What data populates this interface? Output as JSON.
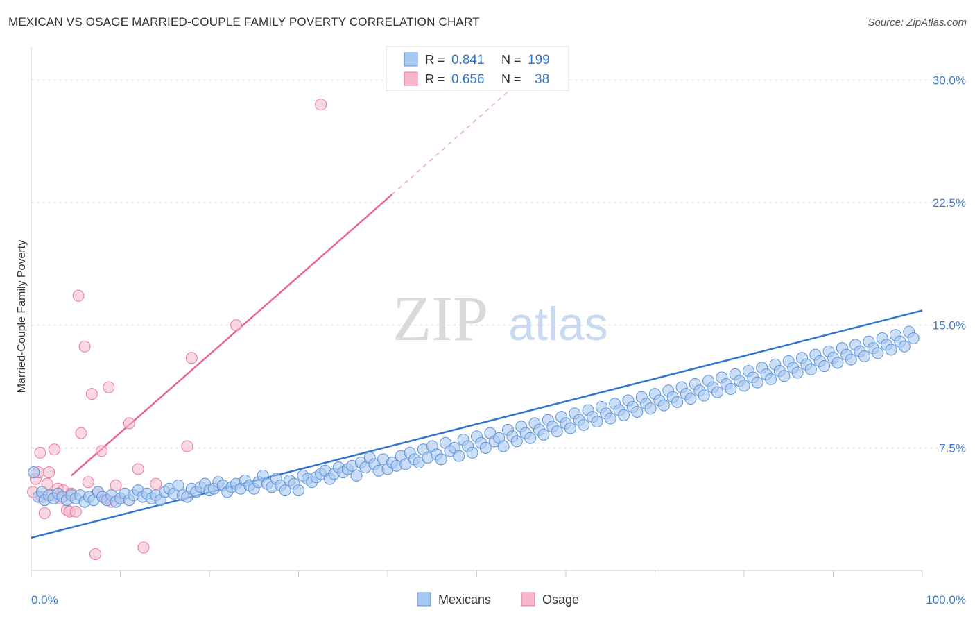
{
  "header": {
    "title": "MEXICAN VS OSAGE MARRIED-COUPLE FAMILY POVERTY CORRELATION CHART",
    "source": "Source: ZipAtlas.com"
  },
  "watermark": {
    "zip": "ZIP",
    "atlas": "atlas"
  },
  "legend_top": {
    "rows": [
      {
        "r_label": "R =",
        "r_value": "0.841",
        "n_label": "N =",
        "n_value": "199",
        "series": "Mexicans"
      },
      {
        "r_label": "R =",
        "r_value": "0.656",
        "n_label": "N =",
        "n_value": "38",
        "series": "Osage"
      }
    ]
  },
  "legend_bottom": {
    "items": [
      "Mexicans",
      "Osage"
    ]
  },
  "colors": {
    "blue_fill": "#a8c8f0",
    "blue_stroke": "#5b92d8",
    "blue_line": "#2f74d0",
    "pink_fill": "#f6b8ca",
    "pink_stroke": "#e8799c",
    "pink_line": "#e8648e",
    "grid": "#d8d8d8",
    "tick_label": "#3a78c8",
    "value_text": "#2f74d0"
  },
  "chart_data": {
    "type": "scatter",
    "title": "MEXICAN VS OSAGE MARRIED-COUPLE FAMILY POVERTY CORRELATION CHART",
    "xlabel": "",
    "ylabel": "Married-Couple Family Poverty",
    "xlim": [
      0,
      100
    ],
    "ylim": [
      0,
      31.5
    ],
    "x_tick_labels": [
      "0.0%",
      "100.0%"
    ],
    "y_ticks": [
      7.5,
      15.0,
      22.5,
      30.0
    ],
    "y_tick_labels": [
      "7.5%",
      "15.0%",
      "22.5%",
      "30.0%"
    ],
    "grid": true,
    "legend_position": "top-center",
    "series": [
      {
        "name": "Mexicans",
        "r": 0.841,
        "n": 199,
        "trend": {
          "x": [
            0,
            100
          ],
          "y": [
            2.0,
            15.9
          ]
        },
        "points": [
          [
            0.3,
            6.0
          ],
          [
            0.8,
            4.5
          ],
          [
            1.2,
            4.8
          ],
          [
            1.5,
            4.3
          ],
          [
            2.0,
            4.6
          ],
          [
            2.5,
            4.4
          ],
          [
            3.0,
            4.7
          ],
          [
            3.5,
            4.5
          ],
          [
            4.0,
            4.3
          ],
          [
            4.5,
            4.6
          ],
          [
            5.0,
            4.4
          ],
          [
            5.5,
            4.6
          ],
          [
            6.0,
            4.2
          ],
          [
            6.5,
            4.5
          ],
          [
            7.0,
            4.3
          ],
          [
            7.5,
            4.8
          ],
          [
            8.0,
            4.5
          ],
          [
            8.5,
            4.3
          ],
          [
            9.0,
            4.6
          ],
          [
            9.5,
            4.2
          ],
          [
            10.0,
            4.4
          ],
          [
            10.5,
            4.7
          ],
          [
            11.0,
            4.3
          ],
          [
            11.5,
            4.6
          ],
          [
            12.0,
            4.9
          ],
          [
            12.5,
            4.5
          ],
          [
            13.0,
            4.7
          ],
          [
            13.5,
            4.4
          ],
          [
            14.0,
            4.6
          ],
          [
            14.5,
            4.3
          ],
          [
            15.0,
            4.8
          ],
          [
            15.5,
            5.0
          ],
          [
            16.0,
            4.7
          ],
          [
            16.5,
            5.2
          ],
          [
            17.0,
            4.6
          ],
          [
            17.5,
            4.5
          ],
          [
            18.0,
            5.0
          ],
          [
            18.5,
            4.8
          ],
          [
            19.0,
            5.1
          ],
          [
            19.5,
            5.3
          ],
          [
            20.0,
            4.9
          ],
          [
            20.5,
            5.0
          ],
          [
            21.0,
            5.4
          ],
          [
            21.5,
            5.2
          ],
          [
            22.0,
            4.8
          ],
          [
            22.5,
            5.1
          ],
          [
            23.0,
            5.3
          ],
          [
            23.5,
            5.0
          ],
          [
            24.0,
            5.5
          ],
          [
            24.5,
            5.2
          ],
          [
            25.0,
            5.0
          ],
          [
            25.5,
            5.4
          ],
          [
            26.0,
            5.8
          ],
          [
            26.5,
            5.3
          ],
          [
            27.0,
            5.1
          ],
          [
            27.5,
            5.6
          ],
          [
            28.0,
            5.2
          ],
          [
            28.5,
            4.9
          ],
          [
            29.0,
            5.5
          ],
          [
            29.5,
            5.3
          ],
          [
            30.0,
            4.9
          ],
          [
            30.5,
            5.8
          ],
          [
            31.0,
            5.6
          ],
          [
            31.5,
            5.4
          ],
          [
            32.0,
            5.7
          ],
          [
            32.5,
            5.9
          ],
          [
            33.0,
            6.1
          ],
          [
            33.5,
            5.6
          ],
          [
            34.0,
            5.9
          ],
          [
            34.5,
            6.3
          ],
          [
            35.0,
            6.0
          ],
          [
            35.5,
            6.2
          ],
          [
            36.0,
            6.4
          ],
          [
            36.5,
            5.8
          ],
          [
            37.0,
            6.6
          ],
          [
            37.5,
            6.3
          ],
          [
            38.0,
            6.9
          ],
          [
            38.5,
            6.5
          ],
          [
            39.0,
            6.1
          ],
          [
            39.5,
            6.8
          ],
          [
            40.0,
            6.2
          ],
          [
            40.5,
            6.6
          ],
          [
            41.0,
            6.4
          ],
          [
            41.5,
            7.0
          ],
          [
            42.0,
            6.5
          ],
          [
            42.5,
            7.2
          ],
          [
            43.0,
            6.8
          ],
          [
            43.5,
            6.6
          ],
          [
            44.0,
            7.4
          ],
          [
            44.5,
            6.9
          ],
          [
            45.0,
            7.6
          ],
          [
            45.5,
            7.1
          ],
          [
            46.0,
            6.8
          ],
          [
            46.5,
            7.8
          ],
          [
            47.0,
            7.3
          ],
          [
            47.5,
            7.5
          ],
          [
            48.0,
            7.0
          ],
          [
            48.5,
            8.0
          ],
          [
            49.0,
            7.6
          ],
          [
            49.5,
            7.2
          ],
          [
            50.0,
            8.2
          ],
          [
            50.5,
            7.8
          ],
          [
            51.0,
            7.5
          ],
          [
            51.5,
            8.4
          ],
          [
            52.0,
            7.9
          ],
          [
            52.5,
            8.1
          ],
          [
            53.0,
            7.6
          ],
          [
            53.5,
            8.6
          ],
          [
            54.0,
            8.2
          ],
          [
            54.5,
            7.9
          ],
          [
            55.0,
            8.8
          ],
          [
            55.5,
            8.4
          ],
          [
            56.0,
            8.1
          ],
          [
            56.5,
            9.0
          ],
          [
            57.0,
            8.6
          ],
          [
            57.5,
            8.3
          ],
          [
            58.0,
            9.2
          ],
          [
            58.5,
            8.8
          ],
          [
            59.0,
            8.5
          ],
          [
            59.5,
            9.4
          ],
          [
            60.0,
            9.0
          ],
          [
            60.5,
            8.7
          ],
          [
            61.0,
            9.6
          ],
          [
            61.5,
            9.2
          ],
          [
            62.0,
            8.9
          ],
          [
            62.5,
            9.8
          ],
          [
            63.0,
            9.4
          ],
          [
            63.5,
            9.1
          ],
          [
            64.0,
            10.0
          ],
          [
            64.5,
            9.6
          ],
          [
            65.0,
            9.3
          ],
          [
            65.5,
            10.2
          ],
          [
            66.0,
            9.8
          ],
          [
            66.5,
            9.5
          ],
          [
            67.0,
            10.4
          ],
          [
            67.5,
            10.0
          ],
          [
            68.0,
            9.7
          ],
          [
            68.5,
            10.6
          ],
          [
            69.0,
            10.2
          ],
          [
            69.5,
            9.9
          ],
          [
            70.0,
            10.8
          ],
          [
            70.5,
            10.4
          ],
          [
            71.0,
            10.1
          ],
          [
            71.5,
            11.0
          ],
          [
            72.0,
            10.6
          ],
          [
            72.5,
            10.3
          ],
          [
            73.0,
            11.2
          ],
          [
            73.5,
            10.8
          ],
          [
            74.0,
            10.5
          ],
          [
            74.5,
            11.4
          ],
          [
            75.0,
            11.0
          ],
          [
            75.5,
            10.7
          ],
          [
            76.0,
            11.6
          ],
          [
            76.5,
            11.2
          ],
          [
            77.0,
            10.9
          ],
          [
            77.5,
            11.8
          ],
          [
            78.0,
            11.4
          ],
          [
            78.5,
            11.1
          ],
          [
            79.0,
            12.0
          ],
          [
            79.5,
            11.6
          ],
          [
            80.0,
            11.3
          ],
          [
            80.5,
            12.2
          ],
          [
            81.0,
            11.8
          ],
          [
            81.5,
            11.5
          ],
          [
            82.0,
            12.4
          ],
          [
            82.5,
            12.0
          ],
          [
            83.0,
            11.7
          ],
          [
            83.5,
            12.6
          ],
          [
            84.0,
            12.2
          ],
          [
            84.5,
            11.9
          ],
          [
            85.0,
            12.8
          ],
          [
            85.5,
            12.4
          ],
          [
            86.0,
            12.1
          ],
          [
            86.5,
            13.0
          ],
          [
            87.0,
            12.6
          ],
          [
            87.5,
            12.3
          ],
          [
            88.0,
            13.2
          ],
          [
            88.5,
            12.8
          ],
          [
            89.0,
            12.5
          ],
          [
            89.5,
            13.4
          ],
          [
            90.0,
            13.0
          ],
          [
            90.5,
            12.7
          ],
          [
            91.0,
            13.6
          ],
          [
            91.5,
            13.2
          ],
          [
            92.0,
            12.9
          ],
          [
            92.5,
            13.8
          ],
          [
            93.0,
            13.4
          ],
          [
            93.5,
            13.1
          ],
          [
            94.0,
            14.0
          ],
          [
            94.5,
            13.6
          ],
          [
            95.0,
            13.3
          ],
          [
            95.5,
            14.2
          ],
          [
            96.0,
            13.8
          ],
          [
            96.5,
            13.5
          ],
          [
            97.0,
            14.4
          ],
          [
            97.5,
            14.0
          ],
          [
            98.0,
            13.7
          ],
          [
            98.5,
            14.6
          ],
          [
            99.0,
            14.2
          ]
        ]
      },
      {
        "name": "Osage",
        "r": 0.656,
        "n": 38,
        "trend": {
          "x": [
            4.5,
            40.5
          ],
          "y": [
            5.8,
            23.0
          ],
          "dashed_to": {
            "x": 56.0,
            "y": 30.5
          }
        },
        "points": [
          [
            0.2,
            4.8
          ],
          [
            0.5,
            5.6
          ],
          [
            0.8,
            6.0
          ],
          [
            1.0,
            7.2
          ],
          [
            1.2,
            4.5
          ],
          [
            1.5,
            3.5
          ],
          [
            1.8,
            5.3
          ],
          [
            2.0,
            6.0
          ],
          [
            2.3,
            4.6
          ],
          [
            2.6,
            7.4
          ],
          [
            3.0,
            5.0
          ],
          [
            3.3,
            4.4
          ],
          [
            3.6,
            4.9
          ],
          [
            4.0,
            3.7
          ],
          [
            4.3,
            3.6
          ],
          [
            4.5,
            4.7
          ],
          [
            5.0,
            3.6
          ],
          [
            5.3,
            16.8
          ],
          [
            5.6,
            8.4
          ],
          [
            6.0,
            13.7
          ],
          [
            6.4,
            5.4
          ],
          [
            6.8,
            10.8
          ],
          [
            7.2,
            1.0
          ],
          [
            7.5,
            4.8
          ],
          [
            7.9,
            7.3
          ],
          [
            8.3,
            4.4
          ],
          [
            8.7,
            11.2
          ],
          [
            9.0,
            4.2
          ],
          [
            9.5,
            5.2
          ],
          [
            10.0,
            4.4
          ],
          [
            11.0,
            9.0
          ],
          [
            12.0,
            6.2
          ],
          [
            12.6,
            1.4
          ],
          [
            14.0,
            5.3
          ],
          [
            17.5,
            7.6
          ],
          [
            18.0,
            13.0
          ],
          [
            23.0,
            15.0
          ],
          [
            32.5,
            28.5
          ]
        ]
      }
    ]
  }
}
